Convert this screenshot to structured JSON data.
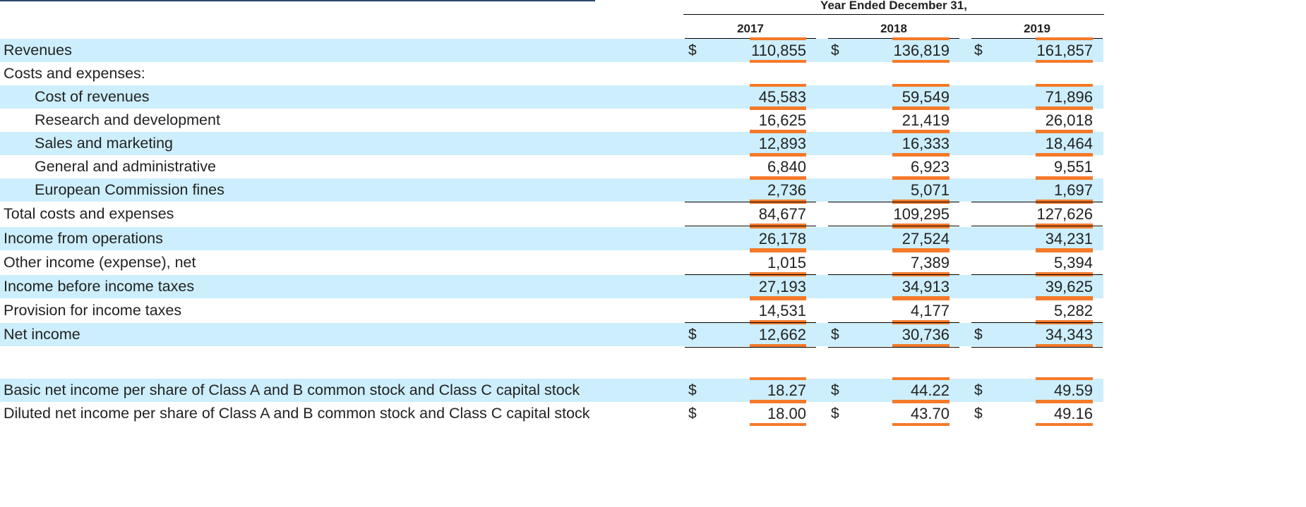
{
  "header": {
    "period_caption": "Year Ended December 31,",
    "years": [
      "2017",
      "2018",
      "2019"
    ]
  },
  "currency_symbol": "$",
  "rows": [
    {
      "label": "Revenues",
      "values": [
        "110,855",
        "136,819",
        "161,857"
      ]
    },
    {
      "label": "Costs and expenses:",
      "values": [
        "",
        "",
        ""
      ]
    },
    {
      "label": "Cost of revenues",
      "values": [
        "45,583",
        "59,549",
        "71,896"
      ]
    },
    {
      "label": "Research and development",
      "values": [
        "16,625",
        "21,419",
        "26,018"
      ]
    },
    {
      "label": "Sales and marketing",
      "values": [
        "12,893",
        "16,333",
        "18,464"
      ]
    },
    {
      "label": "General and administrative",
      "values": [
        "6,840",
        "6,923",
        "9,551"
      ]
    },
    {
      "label": "European Commission fines",
      "values": [
        "2,736",
        "5,071",
        "1,697"
      ]
    },
    {
      "label": "Total costs and expenses",
      "values": [
        "84,677",
        "109,295",
        "127,626"
      ]
    },
    {
      "label": "Income from operations",
      "values": [
        "26,178",
        "27,524",
        "34,231"
      ]
    },
    {
      "label": "Other income (expense), net",
      "values": [
        "1,015",
        "7,389",
        "5,394"
      ]
    },
    {
      "label": "Income before income taxes",
      "values": [
        "27,193",
        "34,913",
        "39,625"
      ]
    },
    {
      "label": "Provision for income taxes",
      "values": [
        "14,531",
        "4,177",
        "5,282"
      ]
    },
    {
      "label": "Net income",
      "values": [
        "12,662",
        "30,736",
        "34,343"
      ]
    }
  ],
  "per_share": [
    {
      "label": "Basic net income per share of Class A and B common stock and Class C capital stock",
      "values": [
        "18.27",
        "44.22",
        "49.59"
      ]
    },
    {
      "label": "Diluted net income per share of Class A and B common stock and Class C capital stock",
      "values": [
        "18.00",
        "43.70",
        "49.16"
      ]
    }
  ],
  "colors": {
    "row_highlight": "#cdeefc",
    "value_underline": "#f47a2a",
    "rule": "#000000"
  }
}
